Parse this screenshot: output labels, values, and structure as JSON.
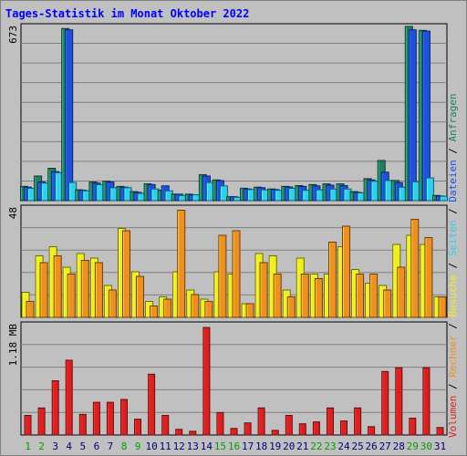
{
  "chart_data": {
    "title": "Tages-Statistik im Monat Oktober 2022",
    "type": "bar",
    "days": [
      "1",
      "2",
      "3",
      "4",
      "5",
      "6",
      "7",
      "8",
      "9",
      "10",
      "11",
      "12",
      "13",
      "14",
      "15",
      "16",
      "17",
      "18",
      "19",
      "20",
      "21",
      "22",
      "23",
      "24",
      "25",
      "26",
      "27",
      "28",
      "29",
      "30",
      "31"
    ],
    "weekend_days": [
      "1",
      "2",
      "8",
      "9",
      "15",
      "16",
      "22",
      "23",
      "29",
      "30"
    ],
    "panels": [
      {
        "axis_label": "673",
        "ylim": [
          0,
          673
        ],
        "series": [
          {
            "name": "Anfragen",
            "color": "#1f7f5f",
            "values": [
              55,
              95,
              125,
              665,
              42,
              72,
              75,
              55,
              35,
              65,
              40,
              25,
              25,
              100,
              80,
              15,
              48,
              52,
              45,
              55,
              58,
              62,
              65,
              65,
              35,
              85,
              155,
              78,
              673,
              658,
              20
            ]
          },
          {
            "name": "Dateien",
            "color": "#1f4fdf",
            "values": [
              52,
              72,
              112,
              660,
              40,
              68,
              72,
              52,
              32,
              62,
              57,
              25,
              23,
              95,
              77,
              15,
              45,
              50,
              43,
              53,
              55,
              57,
              60,
              58,
              32,
              80,
              110,
              70,
              660,
              655,
              18
            ]
          },
          {
            "name": "Seiten",
            "color": "#2fcfef",
            "values": [
              48,
              68,
              108,
              70,
              38,
              62,
              50,
              50,
              28,
              45,
              38,
              20,
              23,
              70,
              57,
              13,
              43,
              42,
              40,
              48,
              40,
              42,
              45,
              45,
              30,
              75,
              78,
              52,
              73,
              88,
              17
            ]
          }
        ]
      },
      {
        "axis_label": "48",
        "ylim": [
          0,
          48
        ],
        "series": [
          {
            "name": "Besuche",
            "color": "#efef1f",
            "values": [
              11,
              27,
              31,
              22,
              28,
              26,
              14,
              39,
              20,
              7,
              9,
              20,
              12,
              8,
              20,
              19,
              6,
              28,
              27,
              12,
              26,
              19,
              19,
              31,
              21,
              15,
              14,
              32,
              36,
              32,
              9
            ]
          },
          {
            "name": "Rechner",
            "color": "#ef8f1f",
            "values": [
              7,
              24,
              27,
              19,
              25,
              24,
              12,
              38,
              18,
              5,
              8,
              47,
              10,
              7,
              36,
              38,
              6,
              24,
              19,
              9,
              19,
              17,
              33,
              40,
              19,
              19,
              12,
              22,
              43,
              35,
              9
            ]
          }
        ]
      },
      {
        "axis_label": "1.18 MB",
        "ylim": [
          0,
          1.18
        ],
        "series": [
          {
            "name": "Volumen",
            "color": "#df1f1f",
            "values": [
              0.21,
              0.29,
              0.58,
              0.8,
              0.22,
              0.35,
              0.35,
              0.38,
              0.17,
              0.65,
              0.21,
              0.06,
              0.04,
              1.15,
              0.24,
              0.07,
              0.13,
              0.29,
              0.05,
              0.21,
              0.12,
              0.14,
              0.29,
              0.15,
              0.29,
              0.09,
              0.68,
              0.72,
              0.18,
              0.72,
              0.08
            ]
          }
        ]
      }
    ],
    "legend": [
      {
        "text": "Volumen",
        "color": "#df1f1f"
      },
      {
        "text": "Rechner",
        "color": "#ef8f1f"
      },
      {
        "text": "Besuche",
        "color": "#efef1f"
      },
      {
        "text": "Seiten",
        "color": "#2fcfef"
      },
      {
        "text": "Dateien",
        "color": "#1f4fdf"
      },
      {
        "text": "Anfragen",
        "color": "#1f7f5f"
      }
    ],
    "legend_separator": "/",
    "colors": {
      "background": "#c0c0c0",
      "title": "#0000ff",
      "weekday_label": "#000080",
      "weekend_label": "#00a000"
    }
  }
}
